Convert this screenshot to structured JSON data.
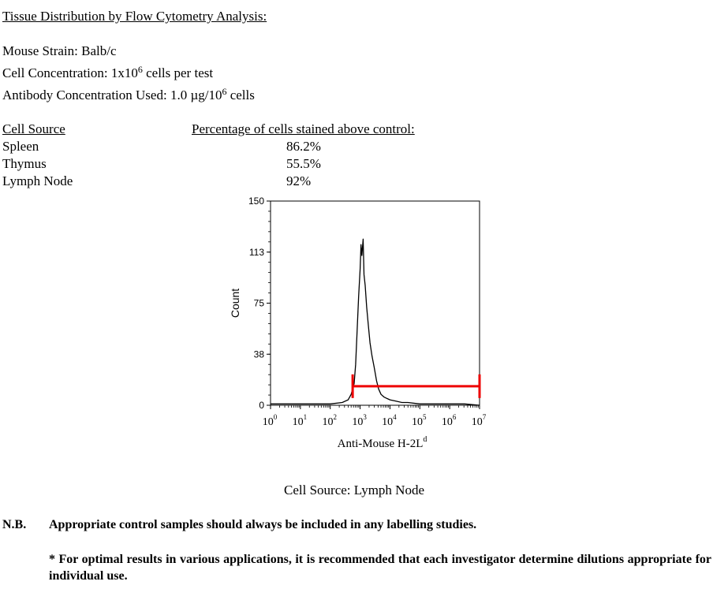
{
  "heading": "Tissue Distribution by Flow Cytometry Analysis:",
  "mouse_strain": "Mouse Strain:  Balb/c",
  "cell_conc": {
    "prefix": "Cell Concentration:  1x10",
    "exp": "6",
    "suffix": " cells per test"
  },
  "antibody_conc": {
    "prefix": "Antibody Concentration Used: 1.0 µg/10",
    "exp": "6",
    "suffix": " cells"
  },
  "table": {
    "col1_header": "Cell Source",
    "col2_header": "Percentage of cells stained above control:",
    "rows": [
      {
        "source": "Spleen",
        "pct": "86.2%"
      },
      {
        "source": "Thymus",
        "pct": "55.5%"
      },
      {
        "source": "Lymph Node",
        "pct": "92%"
      }
    ]
  },
  "caption": "Cell Source: Lymph Node",
  "nb_label": "N.B.",
  "nb_text": "Appropriate control samples should always be included in any labelling studies.",
  "footnote": "* For optimal results in various applications, it is recommended that each investigator determine dilutions appropriate for individual use.",
  "chart_data": {
    "type": "line",
    "ylabel": "Count",
    "xlabel": "Anti-Mouse H-2L",
    "xlabel_sup": "d",
    "y_ticks": [
      "0",
      "38",
      "75",
      "113",
      "150"
    ],
    "ylim": [
      0,
      150
    ],
    "x_scale": "log",
    "x_ticks": [
      {
        "base": "10",
        "exp": "0"
      },
      {
        "base": "10",
        "exp": "1"
      },
      {
        "base": "10",
        "exp": "2"
      },
      {
        "base": "10",
        "exp": "3"
      },
      {
        "base": "10",
        "exp": "4"
      },
      {
        "base": "10",
        "exp": "5"
      },
      {
        "base": "10",
        "exp": "6"
      },
      {
        "base": "10",
        "exp": "7"
      }
    ],
    "xlim_log10": [
      0,
      7
    ],
    "series_color": "#000000",
    "histogram": [
      [
        0,
        1
      ],
      [
        0.5,
        1
      ],
      [
        1.0,
        1
      ],
      [
        1.5,
        1
      ],
      [
        2.0,
        1
      ],
      [
        2.4,
        2
      ],
      [
        2.6,
        4
      ],
      [
        2.7,
        8
      ],
      [
        2.8,
        16
      ],
      [
        2.85,
        30
      ],
      [
        2.9,
        55
      ],
      [
        2.95,
        80
      ],
      [
        3.0,
        100
      ],
      [
        3.03,
        118
      ],
      [
        3.06,
        110
      ],
      [
        3.1,
        122
      ],
      [
        3.13,
        96
      ],
      [
        3.17,
        88
      ],
      [
        3.22,
        72
      ],
      [
        3.27,
        60
      ],
      [
        3.33,
        46
      ],
      [
        3.4,
        36
      ],
      [
        3.47,
        28
      ],
      [
        3.55,
        18
      ],
      [
        3.62,
        12
      ],
      [
        3.7,
        8
      ],
      [
        3.8,
        6
      ],
      [
        3.9,
        5
      ],
      [
        4.0,
        4
      ],
      [
        4.2,
        3
      ],
      [
        4.4,
        2
      ],
      [
        4.6,
        2
      ],
      [
        5.0,
        1
      ],
      [
        5.5,
        1
      ],
      [
        6.0,
        1
      ],
      [
        6.5,
        1
      ],
      [
        7.0,
        0
      ]
    ],
    "gate": {
      "x_start_log10": 2.75,
      "x_end_log10": 7.0,
      "y": 14,
      "color": "#ee0000"
    }
  }
}
